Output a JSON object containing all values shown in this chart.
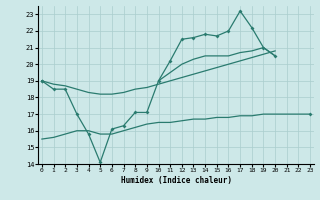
{
  "xlabel": "Humidex (Indice chaleur)",
  "x": [
    0,
    1,
    2,
    3,
    4,
    5,
    6,
    7,
    8,
    9,
    10,
    11,
    12,
    13,
    14,
    15,
    16,
    17,
    18,
    19,
    20,
    21,
    22,
    23
  ],
  "line_jagged": [
    19.0,
    18.5,
    18.5,
    17.0,
    15.8,
    14.1,
    16.1,
    16.3,
    17.1,
    17.1,
    19.0,
    20.2,
    21.5,
    21.6,
    21.8,
    21.7,
    22.0,
    23.2,
    22.2,
    21.0,
    20.5,
    null,
    null,
    null
  ],
  "line_diag": [
    19.0,
    18.8,
    18.7,
    18.5,
    18.3,
    18.2,
    18.2,
    18.3,
    18.5,
    18.6,
    18.8,
    19.0,
    19.2,
    19.4,
    19.6,
    19.8,
    20.0,
    20.2,
    20.4,
    20.6,
    20.8,
    null,
    null,
    17.0
  ],
  "line_upper": [
    null,
    null,
    null,
    null,
    null,
    null,
    null,
    null,
    null,
    null,
    19.0,
    19.5,
    20.0,
    20.3,
    20.5,
    20.5,
    20.5,
    20.7,
    20.8,
    21.0,
    20.5,
    null,
    null,
    null
  ],
  "line_bottom": [
    15.5,
    15.6,
    15.8,
    16.0,
    16.0,
    15.8,
    15.8,
    16.0,
    16.2,
    16.4,
    16.5,
    16.5,
    16.6,
    16.7,
    16.7,
    16.8,
    16.8,
    16.9,
    16.9,
    17.0,
    17.0,
    17.0,
    17.0,
    17.0
  ],
  "ylim": [
    14,
    23.5
  ],
  "xlim": [
    -0.3,
    23.3
  ],
  "yticks": [
    14,
    15,
    16,
    17,
    18,
    19,
    20,
    21,
    22,
    23
  ],
  "xticks": [
    0,
    1,
    2,
    3,
    4,
    5,
    6,
    7,
    8,
    9,
    10,
    11,
    12,
    13,
    14,
    15,
    16,
    17,
    18,
    19,
    20,
    21,
    22,
    23
  ],
  "line_color": "#2a7b6f",
  "bg_color": "#cde8e8",
  "grid_color": "#aacece"
}
